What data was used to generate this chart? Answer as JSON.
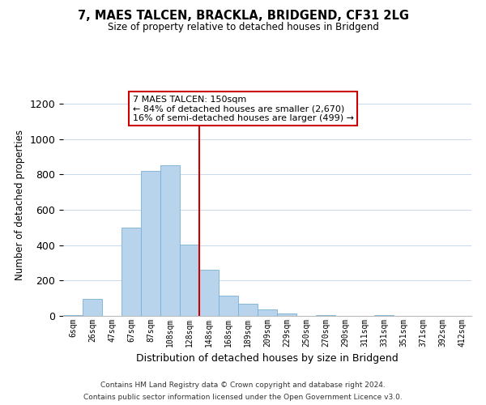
{
  "title": "7, MAES TALCEN, BRACKLA, BRIDGEND, CF31 2LG",
  "subtitle": "Size of property relative to detached houses in Bridgend",
  "xlabel": "Distribution of detached houses by size in Bridgend",
  "ylabel": "Number of detached properties",
  "bar_labels": [
    "6sqm",
    "26sqm",
    "47sqm",
    "67sqm",
    "87sqm",
    "108sqm",
    "128sqm",
    "148sqm",
    "168sqm",
    "189sqm",
    "209sqm",
    "229sqm",
    "250sqm",
    "270sqm",
    "290sqm",
    "311sqm",
    "331sqm",
    "351sqm",
    "371sqm",
    "392sqm",
    "412sqm"
  ],
  "bar_values": [
    5,
    95,
    0,
    500,
    820,
    850,
    405,
    260,
    115,
    70,
    35,
    15,
    0,
    5,
    0,
    0,
    5,
    0,
    0,
    0,
    0
  ],
  "bar_color": "#b8d4ec",
  "bar_edge_color": "#7aafd4",
  "vline_color": "#cc0000",
  "vline_index": 7,
  "ylim": [
    0,
    1260
  ],
  "yticks": [
    0,
    200,
    400,
    600,
    800,
    1000,
    1200
  ],
  "annotation_title": "7 MAES TALCEN: 150sqm",
  "annotation_line1": "← 84% of detached houses are smaller (2,670)",
  "annotation_line2": "16% of semi-detached houses are larger (499) →",
  "annotation_box_color": "#ffffff",
  "annotation_box_edge": "#cc0000",
  "footer_line1": "Contains HM Land Registry data © Crown copyright and database right 2024.",
  "footer_line2": "Contains public sector information licensed under the Open Government Licence v3.0.",
  "bg_color": "#ffffff",
  "grid_color": "#c8d8ec"
}
